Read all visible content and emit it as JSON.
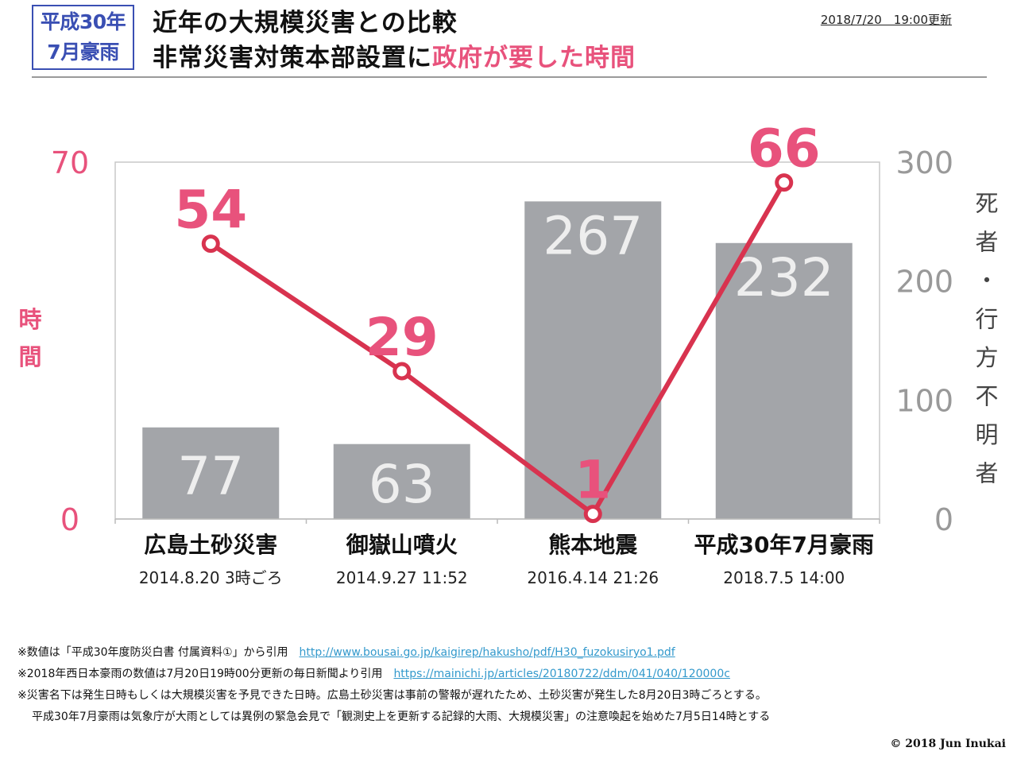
{
  "header": {
    "badge_line1": "平成30年",
    "badge_line2": "7月豪雨",
    "title_line1": "近年の大規模災害との比較",
    "title_line2_main": "非常災害対策本部設置に",
    "title_line2_accent": "政府が要した時間",
    "updated": "2018/7/20　19:00更新"
  },
  "colors": {
    "accent": "#e8527c",
    "line": "#d8334f",
    "bar": "#a3a5a9",
    "badge": "#3a4fb3",
    "link": "#3399cc"
  },
  "chart_data": {
    "type": "bar+line",
    "categories": [
      "広島土砂災害",
      "御嶽山噴火",
      "熊本地震",
      "平成30年7月豪雨"
    ],
    "category_dates": [
      "2014.8.20 3時ごろ",
      "2014.9.27 11:52",
      "2016.4.14 21:26",
      "2018.7.5 14:00"
    ],
    "series": [
      {
        "name": "死者・行方不明者",
        "type": "bar",
        "axis": "right",
        "values": [
          77,
          63,
          267,
          232
        ]
      },
      {
        "name": "時間",
        "type": "line",
        "axis": "left",
        "values": [
          54,
          29,
          1,
          66
        ]
      }
    ],
    "left_axis": {
      "label": "時間",
      "ylim": [
        0,
        70
      ],
      "ticks": [
        0,
        70
      ]
    },
    "right_axis": {
      "label": "死者・行方不明者",
      "ylim": [
        0,
        300
      ],
      "ticks": [
        0,
        100,
        200,
        300
      ]
    },
    "grid": false
  },
  "notes": [
    {
      "text": "※数値は「平成30年度防災白書 付属資料①」から引用",
      "link": "http://www.bousai.go.jp/kaigirep/hakusho/pdf/H30_fuzokusiryo1.pdf"
    },
    {
      "text": "※2018年西日本豪雨の数値は7月20日19時00分更新の毎日新聞より引用",
      "link": "https://mainichi.jp/articles/20180722/ddm/041/040/120000c"
    },
    {
      "text": "※災害名下は発生日時もしくは大規模災害を予見できた日時。広島土砂災害は事前の警報が遅れたため、土砂災害が発生した8月20日3時ごろとする。",
      "link": ""
    },
    {
      "text": "平成30年7月豪雨は気象庁が大雨としては異例の緊急会見で「観測史上を更新する記録的大雨、大規模災害」の注意喚起を始めた7月5日14時とする",
      "link": ""
    }
  ],
  "copyright": "© 2018 Jun Inukai"
}
